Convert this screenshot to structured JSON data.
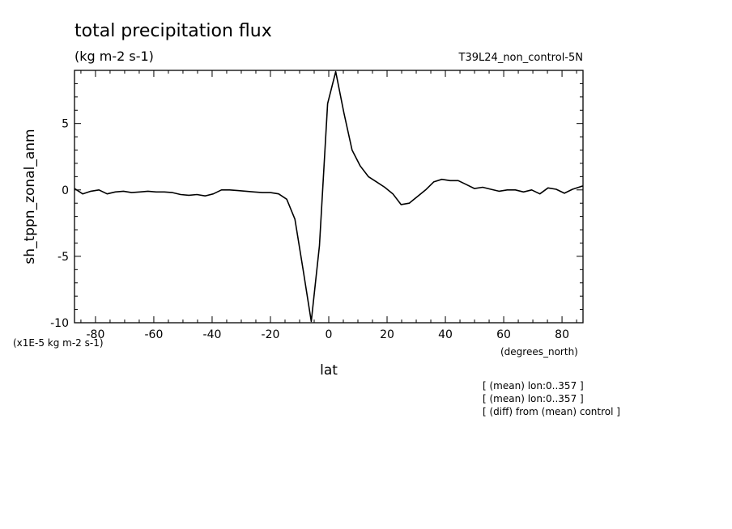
{
  "chart_data": {
    "type": "line",
    "title": "total precipitation flux",
    "units": "(kg m-2 s-1)",
    "experiment": "T39L24_non_control-5N",
    "ylabel": "sh_tppn_zonal_anm",
    "yscale_note": "(x1E-5 kg m-2 s-1)",
    "xlabel": "lat",
    "xunits": "(degrees_north)",
    "xlim": [
      -87.2,
      87.2
    ],
    "ylim": [
      -10,
      9
    ],
    "xticks": [
      -80,
      -60,
      -40,
      -20,
      0,
      20,
      40,
      60,
      80
    ],
    "xtick_labels": [
      "-80",
      "-60",
      "-40",
      "-20",
      "0",
      "20",
      "40",
      "60",
      "80"
    ],
    "yticks": [
      -10,
      -5,
      0,
      5
    ],
    "ytick_labels": [
      "-10",
      "-5",
      "0",
      "5"
    ],
    "notes": [
      "[ (mean) lon:0..357 ]",
      "[ (mean) lon:0..357 ]",
      "[ (diff) from (mean) control ]"
    ],
    "series": [
      {
        "x": [
          -87.2,
          -84.4,
          -81.6,
          -78.8,
          -76,
          -73.2,
          -70.4,
          -67.6,
          -64.8,
          -62,
          -59.2,
          -56.4,
          -53.6,
          -50.8,
          -48,
          -45.2,
          -42.4,
          -39.6,
          -36.8,
          -34,
          -31.2,
          -28.4,
          -25.6,
          -22.8,
          -20,
          -17.2,
          -14.4,
          -11.6,
          -8.8,
          -6,
          -3.2,
          -0.4,
          2.4,
          5.2,
          8,
          10.8,
          13.6,
          16.4,
          19.2,
          22,
          24.8,
          27.6,
          30.4,
          33.2,
          36,
          38.8,
          41.6,
          44.4,
          47.2,
          50,
          52.8,
          55.6,
          58.4,
          61.2,
          64,
          66.8,
          69.6,
          72.4,
          75.2,
          78,
          80.8,
          83.6,
          86.4,
          87.2
        ],
        "y": [
          0.1,
          -0.3,
          -0.1,
          0.0,
          -0.3,
          -0.15,
          -0.1,
          -0.2,
          -0.15,
          -0.1,
          -0.15,
          -0.15,
          -0.2,
          -0.35,
          -0.4,
          -0.35,
          -0.45,
          -0.3,
          0.0,
          0.0,
          -0.05,
          -0.1,
          -0.15,
          -0.2,
          -0.2,
          -0.3,
          -0.7,
          -2.2,
          -6.0,
          -9.9,
          -4.2,
          6.5,
          8.9,
          5.8,
          3.0,
          1.8,
          1.0,
          0.6,
          0.2,
          -0.3,
          -1.1,
          -1.0,
          -0.5,
          0.0,
          0.6,
          0.8,
          0.7,
          0.7,
          0.4,
          0.1,
          0.2,
          0.05,
          -0.1,
          0.0,
          0.0,
          -0.15,
          0.0,
          -0.3,
          0.15,
          0.05,
          -0.25,
          0.05,
          0.25,
          0.3
        ]
      }
    ]
  }
}
